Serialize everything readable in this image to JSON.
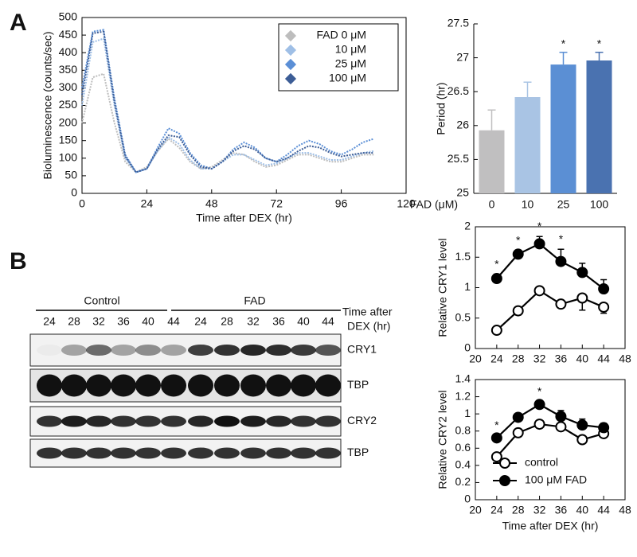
{
  "panels": [
    "A",
    "B"
  ],
  "chart_data": [
    {
      "type": "line",
      "xlabel": "Time after DEX (hr)",
      "ylabel": "Bioluminescence (counts/sec)",
      "x": [
        0,
        4,
        8,
        12,
        16,
        20,
        24,
        28,
        32,
        36,
        40,
        44,
        48,
        52,
        56,
        60,
        64,
        68,
        72,
        76,
        80,
        84,
        88,
        92,
        96,
        100,
        104,
        108
      ],
      "xlim": [
        0,
        120
      ],
      "xticks": [
        0,
        24,
        48,
        72,
        96,
        120
      ],
      "ylim": [
        0,
        500
      ],
      "yticks": [
        0,
        50,
        100,
        150,
        200,
        250,
        300,
        350,
        400,
        450,
        500
      ],
      "legend": "upper right",
      "series": [
        {
          "name": "FAD 0 μM",
          "color": "#bdbdbd",
          "values": [
            200,
            330,
            340,
            200,
            90,
            60,
            75,
            120,
            155,
            130,
            90,
            70,
            75,
            95,
            115,
            110,
            90,
            75,
            80,
            95,
            110,
            110,
            100,
            90,
            90,
            100,
            110,
            110
          ]
        },
        {
          "name": "10 μM",
          "color": "#9fbfe6",
          "values": [
            250,
            430,
            440,
            250,
            100,
            60,
            70,
            120,
            160,
            140,
            95,
            70,
            70,
            90,
            110,
            110,
            95,
            80,
            85,
            100,
            115,
            115,
            105,
            95,
            95,
            105,
            115,
            120
          ]
        },
        {
          "name": "25 μM",
          "color": "#5b8fd6",
          "values": [
            300,
            460,
            465,
            270,
            110,
            60,
            70,
            130,
            185,
            170,
            115,
            80,
            70,
            90,
            125,
            145,
            130,
            100,
            90,
            110,
            135,
            150,
            140,
            120,
            110,
            125,
            145,
            155
          ]
        },
        {
          "name": "100 μM",
          "color": "#3c5d96",
          "values": [
            280,
            455,
            460,
            260,
            105,
            60,
            70,
            125,
            165,
            160,
            110,
            75,
            70,
            90,
            120,
            135,
            125,
            100,
            90,
            100,
            120,
            135,
            130,
            115,
            105,
            110,
            115,
            115
          ]
        }
      ]
    },
    {
      "type": "bar",
      "xlabel": "FAD (μM)",
      "ylabel": "Period (hr)",
      "categories": [
        "0",
        "10",
        "25",
        "100"
      ],
      "values": [
        25.93,
        26.42,
        26.9,
        26.96
      ],
      "errors": [
        0.3,
        0.22,
        0.18,
        0.12
      ],
      "colors": [
        "#c0bfc0",
        "#a9c4e4",
        "#5b8fd4",
        "#4a72b0"
      ],
      "ylim": [
        25,
        27.5
      ],
      "yticks": [
        25,
        25.5,
        26,
        26.5,
        27,
        27.5
      ],
      "significance": [
        {
          "index": 2,
          "label": "*"
        },
        {
          "index": 3,
          "label": "*"
        }
      ]
    },
    {
      "type": "line",
      "ylabel": "Relative CRY1 level",
      "x": [
        24,
        28,
        32,
        36,
        40,
        44
      ],
      "xlim": [
        20,
        48
      ],
      "xticks": [
        20,
        24,
        28,
        32,
        36,
        40,
        44,
        48
      ],
      "ylim": [
        0,
        2
      ],
      "yticks": [
        0,
        0.5,
        1,
        1.5,
        2
      ],
      "series": [
        {
          "marker": "open",
          "color": "#000000",
          "values": [
            0.3,
            0.62,
            0.95,
            0.73,
            0.83,
            0.68
          ],
          "errors": [
            0.03,
            0.07,
            0.04,
            0.04,
            0.2,
            0.1
          ]
        },
        {
          "marker": "filled",
          "color": "#000000",
          "values": [
            1.15,
            1.55,
            1.72,
            1.43,
            1.25,
            0.98
          ],
          "errors": [
            0.07,
            0.06,
            0.12,
            0.2,
            0.15,
            0.15
          ]
        }
      ],
      "significance": [
        {
          "index": 0,
          "label": "*"
        },
        {
          "index": 1,
          "label": "*"
        },
        {
          "index": 2,
          "label": "*"
        },
        {
          "index": 3,
          "label": "*"
        }
      ]
    },
    {
      "type": "line",
      "xlabel": "Time after DEX (hr)",
      "ylabel": "Relative CRY2 level",
      "x": [
        24,
        28,
        32,
        36,
        40,
        44
      ],
      "xlim": [
        20,
        48
      ],
      "xticks": [
        20,
        24,
        28,
        32,
        36,
        40,
        44,
        48
      ],
      "ylim": [
        0,
        1.4
      ],
      "yticks": [
        0,
        0.2,
        0.4,
        0.6,
        0.8,
        1,
        1.2,
        1.4
      ],
      "legend": "lower center",
      "series": [
        {
          "name": "control",
          "marker": "open",
          "color": "#000000",
          "values": [
            0.5,
            0.78,
            0.88,
            0.85,
            0.7,
            0.77
          ],
          "errors": [
            0.07,
            0.03,
            0.03,
            0.03,
            0.03,
            0.03
          ]
        },
        {
          "name": "100 μM FAD",
          "marker": "filled",
          "color": "#000000",
          "values": [
            0.72,
            0.96,
            1.11,
            0.97,
            0.87,
            0.84
          ],
          "errors": [
            0.03,
            0.03,
            0.03,
            0.07,
            0.07,
            0.05
          ]
        }
      ],
      "significance": [
        {
          "index": 0,
          "label": "*"
        },
        {
          "index": 2,
          "label": "*"
        }
      ]
    }
  ],
  "blot": {
    "groups": [
      "Control",
      "FAD"
    ],
    "time_label": [
      "Time after",
      "DEX (hr)"
    ],
    "lanes": [
      24,
      28,
      32,
      36,
      40,
      44,
      24,
      28,
      32,
      36,
      40,
      44
    ],
    "rows": [
      "CRY1",
      "TBP",
      "CRY2",
      "TBP"
    ]
  }
}
